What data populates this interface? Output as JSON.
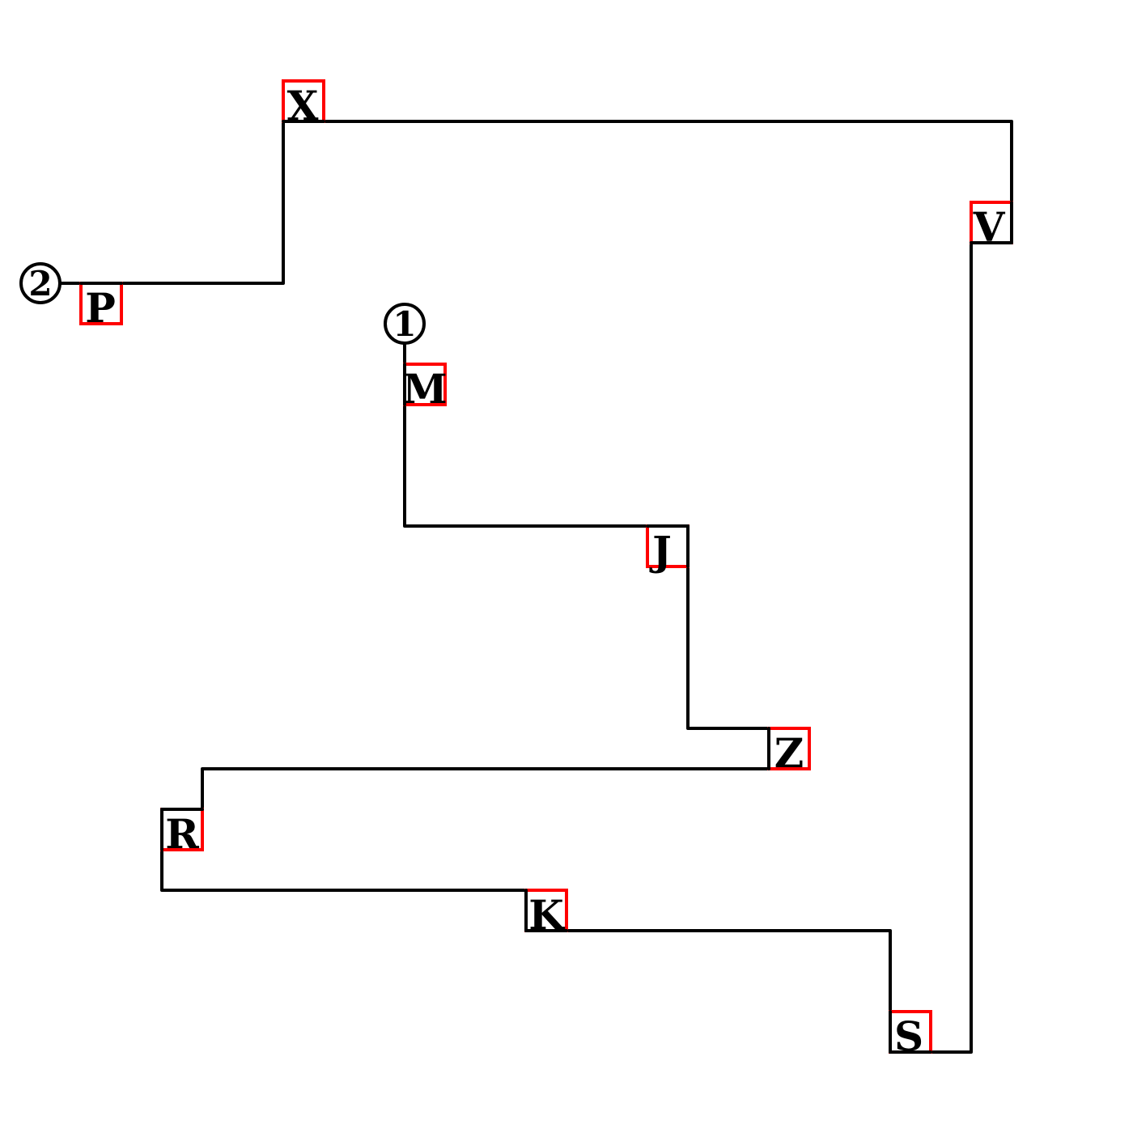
{
  "colors": {
    "line": "#000000",
    "box": "#ff0000",
    "background": "#ffffff"
  },
  "markers": [
    {
      "label": "1"
    },
    {
      "label": "2"
    }
  ],
  "nodes": [
    {
      "label": "M"
    },
    {
      "label": "J"
    },
    {
      "label": "Z"
    },
    {
      "label": "R"
    },
    {
      "label": "K"
    },
    {
      "label": "S"
    },
    {
      "label": "V"
    },
    {
      "label": "X"
    },
    {
      "label": "P"
    }
  ]
}
